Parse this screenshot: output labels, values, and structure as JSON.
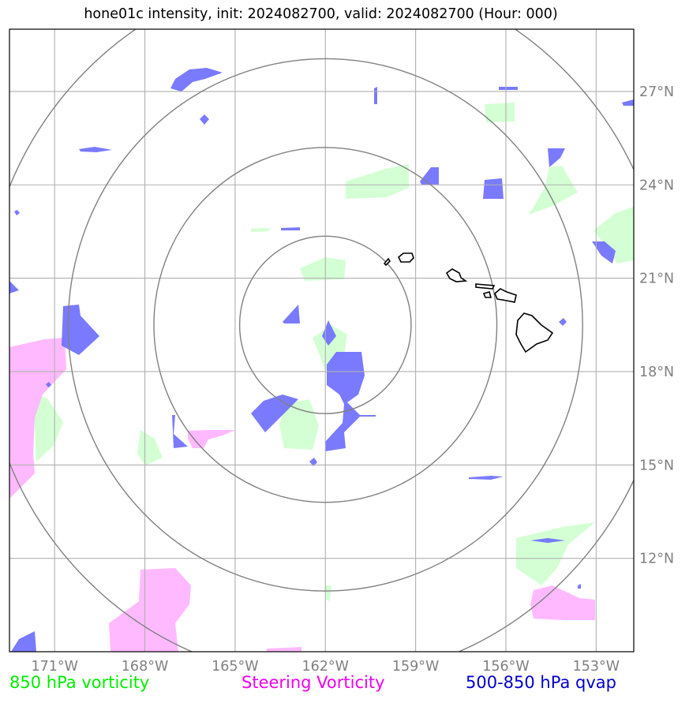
{
  "title": "hone01c intensity, init: 2024082700, valid: 2024082700 (Hour: 000)",
  "map": {
    "projection": "lat-lon",
    "lon_range": [
      -172.5,
      -151.75
    ],
    "lat_range": [
      9.0,
      29.0
    ],
    "lon_ticks": [
      {
        "value": -171,
        "label": "171°W"
      },
      {
        "value": -168,
        "label": "168°W"
      },
      {
        "value": -165,
        "label": "165°W"
      },
      {
        "value": -162,
        "label": "162°W"
      },
      {
        "value": -159,
        "label": "159°W"
      },
      {
        "value": -156,
        "label": "156°W"
      },
      {
        "value": -153,
        "label": "153°W"
      }
    ],
    "lat_ticks": [
      {
        "value": 12,
        "label": "12°N"
      },
      {
        "value": 15,
        "label": "15°N"
      },
      {
        "value": 18,
        "label": "18°N"
      },
      {
        "value": 21,
        "label": "21°N"
      },
      {
        "value": 24,
        "label": "24°N"
      },
      {
        "value": 27,
        "label": "27°N"
      }
    ],
    "grid": true,
    "range_rings": {
      "center_lon": -162.0,
      "center_lat": 19.5,
      "radius_degrees": [
        2.85,
        5.7,
        8.55,
        11.4
      ],
      "color": "#808080"
    },
    "colors": {
      "vorticity_850": "#ccffcc",
      "steering_vorticity": "#ff99ff",
      "qvap": "#6b6bff",
      "coastline": "#000000",
      "grid": "#b0b0b0"
    }
  },
  "legend": {
    "green": {
      "label": "850 hPa vorticity",
      "color": "#00ee00"
    },
    "magenta": {
      "label": "Steering Vorticity",
      "color": "#ee00ee"
    },
    "blue": {
      "label": "500-850 hPa qvap",
      "color": "#0000cc"
    }
  }
}
